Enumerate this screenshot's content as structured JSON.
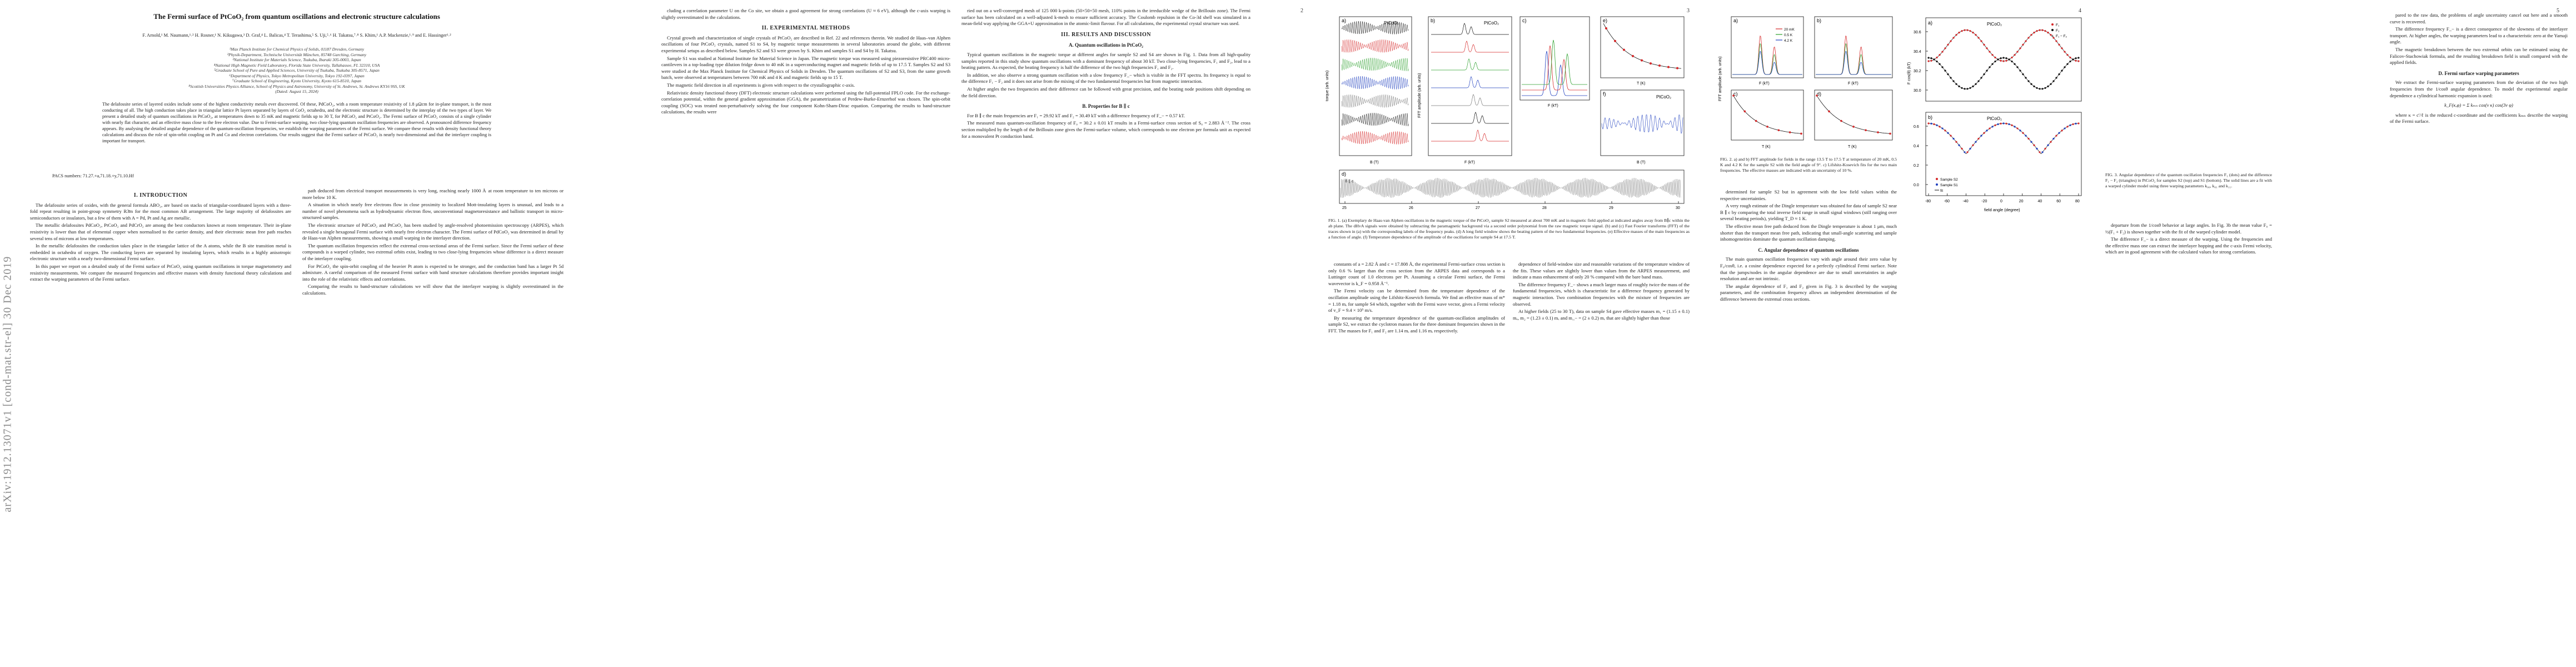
{
  "arxiv_stamp": "arXiv:1912.13071v1  [cond-mat.str-el]  30 Dec 2019",
  "page_numbers": [
    "2",
    "3",
    "4",
    "5"
  ],
  "page1": {
    "title": "The Fermi surface of PtCoO₂ from quantum oscillations and electronic structure calculations",
    "authors": "F. Arnold,¹ M. Naumann,¹˒² H. Rosner,¹ N. Kikugawa,³ D. Graf,⁴ L. Balicas,⁴ T. Terashima,⁵ S. Uji,⁵˒⁶ H. Takatsu,⁷˒⁸ S. Khim,¹ A.P. Mackenzie,¹˒⁹ and E. Hassinger¹˒²",
    "affiliations": [
      "¹Max Planck Institute for Chemical Physics of Solids, 01187 Dresden, Germany",
      "²Physik-Department, Technische Universität München, 85748 Garching, Germany",
      "³National Institute for Materials Science, Tsukuba, Ibaraki 305-0003, Japan",
      "⁴National High Magnetic Field Laboratory, Florida State University, Tallahassee, FL 32310, USA",
      "⁵Graduate School of Pure and Applied Sciences, University of Tsukuba, Tsukuba 305-8571, Japan",
      "⁶Department of Physics, Tokyo Metropolitan University, Tokyo 192-0397, Japan",
      "⁷Graduate School of Engineering, Kyoto University, Kyoto 615-8510, Japan",
      "⁸Scottish Universities Physics Alliance, School of Physics and Astronomy, University of St. Andrews, St. Andrews KY16 9SS, UK",
      "(Dated: August 15, 2024)"
    ],
    "abstract": "The delafossite series of layered oxides include some of the highest conductivity metals ever discovered. Of these, PdCoO₂, with a room temperature resistivity of 1.8 μΩcm for in-plane transport, is the most conducting of all. The high conduction takes place in triangular lattice Pt layers separated by layers of CoO₂ octahedra, and the electronic structure is determined by the interplay of the two types of layer. We present a detailed study of quantum oscillations in PtCoO₂, at temperatures down to 35 mK and magnetic fields up to 30 T, for PdCoO₂ and PtCoO₂. The Fermi surface of PtCoO₂ consists of a single cylinder with nearly flat character, and an effective mass close to the free electron value. Due to Fermi-surface warping, two close-lying quantum oscillation frequencies are observed. A pronounced difference frequency appears. By analysing the detailed angular dependence of the quantum-oscillation frequencies, we establish the warping parameters of the Fermi surface. We compare these results with density functional theory calculations and discuss the role of spin-orbit coupling on Pt and Co and electron correlations. Our results suggest that the Fermi surface of PtCoO₂ is nearly two-dimensional and that the interlayer coupling is important for transport.",
    "pacs": "PACS numbers: 71.27.+a,71.18.+y,71.10.Hf",
    "section1_heading": "I.   INTRODUCTION",
    "section1_paragraphs": [
      "The delafossite series of oxides, with the general formula ABO₂, are based on stacks of triangular-coordinated layers with a three-fold repeat resulting in point-group symmetry R3̄m for the most common AB arrangement. The large majority of delafossites are semiconductors or insulators, but a few of them with A = Pd, Pt and Ag are metallic.",
      "The metallic delafossites PdCoO₂, PtCoO₂ and PdCrO₂ are among the best conductors known at room temperature. Their in-plane resistivity is lower than that of elemental copper when normalised to the carrier density, and their electronic mean free path reaches several tens of microns at low temperatures.",
      "In the metallic delafossites the conduction takes place in the triangular lattice of the A atoms, while the B site transition metal is embedded in octahedra of oxygen. The conducting layers are separated by insulating layers, which results in a highly anisotropic electronic structure with a nearly two-dimensional Fermi surface.",
      "In this paper we report on a detailed study of the Fermi surface of PtCoO₂ using quantum oscillations in torque magnetometry and resistivity measurements. We compare the measured frequencies and effective masses with density functional theory calculations and extract the warping parameters of the Fermi surface."
    ],
    "col2_paragraphs": [
      "path deduced from electrical transport measurements is very long, reaching nearly 1000 Å at room temperature to ten microns or more below 10 K.",
      "A situation in which nearly free electrons flow in close proximity to localized Mott-insulating layers is unusual, and leads to a number of novel phenomena such as hydrodynamic electron flow, unconventional magnetoresistance and ballistic transport in micro-structured samples.",
      "The electronic structure of PdCoO₂ and PtCoO₂ has been studied by angle-resolved photoemission spectroscopy (ARPES), which revealed a single hexagonal Fermi surface with nearly free electron character. The Fermi surface of PdCoO₂ was determined in detail by de Haas-van Alphen measurements, showing a small warping in the interlayer direction.",
      "The quantum oscillation frequencies reflect the extremal cross-sectional areas of the Fermi surface. Since the Fermi surface of these compounds is a warped cylinder, two extremal orbits exist, leading to two close-lying frequencies whose difference is a direct measure of the interlayer coupling.",
      "For PtCoO₂ the spin-orbit coupling of the heavier Pt atom is expected to be stronger, and the conduction band has a larger Pt 5d admixture. A careful comparison of the measured Fermi surface with band structure calculations therefore provides important insight into the role of the relativistic effects and correlations.",
      "Comparing the results to band-structure calculations we will show that the interlayer warping is slightly overestimated in the calculations."
    ]
  },
  "page2": {
    "col1_paragraphs": [
      "cluding a correlation parameter U on the Co site, we obtain a good agreement for strong correlations (U ≈ 6 eV), although the c-axis warping is slightly overestimated in the calculations."
    ],
    "section2_heading": "II.   EXPERIMENTAL METHODS",
    "section2_paragraphs": [
      "Crystal growth and characterization of single crystals of PtCoO₂ are described in Ref. 22 and references therein. We studied de Haas–van Alphen oscillations of four PtCoO₂ crystals, named S1 to S4, by magnetic torque measurements in several laboratories around the globe, with different experimental setups as described below. Samples S2 and S3 were grown by S. Khim and samples S1 and S4 by H. Takatsu.",
      "Sample S1 was studied at National Institute for Material Science in Japan. The magnetic torque was measured using piezoresistive PRC400 micro-cantilevers in a top-loading type dilution fridge down to 40 mK in a superconducting magnet and magnetic fields of up to 17.5 T. Samples S2 and S3 were studied at the Max Planck Institute for Chemical Physics of Solids in Dresden. The quantum oscillations of S2 and S3, from the same growth batch, were observed at temperatures between 700 mK and 4 K and magnetic fields up to 15 T.",
      "The magnetic field direction in all experiments is given with respect to the crystallographic c-axis.",
      "Relativistic density functional theory (DFT) electronic structure calculations were performed using the full-potential FPLO code. For the exchange-correlation potential, within the general gradient approximation (GGA), the parametrization of Perdew-Burke-Ernzerhof was chosen. The spin-orbit coupling (SOC) was treated non-perturbatively solving the four component Kohn-Sham-Dirac equation. Comparing the results to band-structure calculations, the results were"
    ],
    "col2_paragraphs": [
      "ried out on a well-converged mesh of 125 000 k-points (50×50×50 mesh, 110% points in the irreducible wedge of the Brillouin zone). The Fermi surface has been calculated on a well-adjusted k-mesh to ensure sufficient accuracy. The Coulomb repulsion in the Co-3d shell was simulated in a mean-field way applying the GGA+U approximation in the atomic-limit flavour. For all calculations, the experimental crystal structure was used."
    ],
    "section3_heading": "III.   RESULTS AND DISCUSSION",
    "subsectionA_heading": "A.   Quantum oscillations in PtCoO₂",
    "subsectionA_paragraphs": [
      "Typical quantum oscillations in the magnetic torque at different angles for sample S2 and S4 are shown in Fig. 1. Data from all high-quality samples reported in this study show quantum oscillations with a dominant frequency of about 30 kT. Two close-lying frequencies, F₁ and F₂, lead to a beating pattern. As expected, the beating frequency is half the difference of the two high frequencies F₁ and F₂.",
      "In addition, we also observe a strong quantum oscillation with a slow frequency F_− which is visible in the FFT spectra. Its frequency is equal to the difference F₁ − F₂ and it does not arise from the mixing of the two fundamental frequencies but from magnetic interaction.",
      "At higher angles the two frequencies and their difference can be followed with great precision, and the beating node positions shift depending on the field direction."
    ],
    "subsectionB_heading": "B.   Properties for B ∥ c",
    "subsectionB_paragraphs": [
      "For B ∥ c the main frequencies are F₁ = 29.92 kT and F₂ = 30.49 kT with a difference frequency of F_− = 0.57 kT.",
      "The measured mass quantum-oscillation frequency of F₀ = 30.2 ± 0.01 kT results in a Fermi-surface cross section of S₀ = 2.883 Å⁻². The cross section multiplied by the length of the Brillouin zone gives the Fermi-surface volume, which corresponds to one electron per formula unit as expected for a monovalent Pt conduction band."
    ]
  },
  "page3": {
    "figure1_caption": "FIG. 1. (a) Exemplary de Haas-van Alphen oscillations in the magnetic torque of the PtCoO₂ sample S2 measured at about 700 mK and in magnetic field applied at indicated angles away from B∥c within the ab plane. The dHvA signals were obtained by subtracting the paramagnetic background via a second order polynomial from the raw magnetic torque signal. (b) and (c) Fast Fourier transforms (FFT) of the traces shown in (a) with the corresponding labels of the frequency peaks. (d) A long field window shows the beating pattern of the two fundamental frequencies. (e) Effective masses of the main frequencies as a function of angle. (f) Temperature dependence of the amplitude of the oscillations for sample S4 at 17.5 T.",
    "col1_paragraphs": [
      "constants of a = 2.82 Å and c = 17.808 Å, the experimental Fermi-surface cross section is only 0.6 % larger than the cross section from the ARPES data and corresponds to a Luttinger count of 1.0 electrons per Pt. Assuming a circular Fermi surface, the Fermi wavevector is k_F = 0.958 Å⁻¹.",
      "The Fermi velocity can be determined from the temperature dependence of the oscillation amplitude using the Lifshitz-Kosevich formula. We find an effective mass of m* = 1.18 mₑ for sample S4 which, together with the Fermi wave vector, gives a Fermi velocity of v_F = 9.4 × 10⁵ m/s.",
      "By measuring the temperature dependence of the quantum-oscillation amplitudes of sample S2, we extract the cyclotron masses for the three dominant frequencies shown in the FFT. The masses for F₁ and F₂ are 1.14 mₑ and 1.16 mₑ respectively."
    ],
    "col2_paragraphs": [
      "dependence of field-window size and reasonable variations of the temperature window of the fits. These values are slightly lower than values from the ARPES measurement, and indicate a mass enhancement of only 20 % compared with the bare band mass.",
      "The difference frequency F_− shows a much larger mass of roughly twice the mass of the fundamental frequencies, which is characteristic for a difference frequency generated by magnetic interaction. Two combination frequencies with the mixture of frequencies are observed.",
      "At higher fields (25 to 30 T), data on sample S4 gave effective masses m₁ = (1.15 ± 0.1) mₑ, m₂ = (1.23 ± 0.1) mₑ and m_− = (2 ± 0.2) mₑ that are slightly higher than those"
    ]
  },
  "page4": {
    "figure2_caption": "FIG. 2. a) and b) FFT amplitude for fields in the range 13.5 T to 17.5 T at temperature of 20 mK, 0.5 K and 4.2 K for the sample S2 with the field angle of 9°. c) Lifshitz-Kosevich fits for the two main frequencies. The effective masses are indicated with an uncertainty of 10 %.",
    "col1_paragraphs": [
      "determined for sample S2 but in agreement with the low field values within the respective uncertainties.",
      "A very rough estimate of the Dingle temperature was obtained for data of sample S2 near B ∥ c by comparing the total inverse field range in small signal windows (still ranging over several beating periods), yielding T_D ≈ 1 K.",
      "The effective mean free path deduced from the Dingle temperature is about 1 μm, much shorter than the transport mean free path, indicating that small-angle scattering and sample inhomogeneities dominate the quantum oscillation damping."
    ],
    "subsectionC_heading": "C.   Angular dependence of quantum oscillations",
    "subsectionC_paragraphs": [
      "The main quantum oscillation frequencies vary with angle around their zero value by F₀/cosθ, i.e. a cosine dependence expected for a perfectly cylindrical Fermi surface. Note that the jumps/nodes in the angular dependence are due to small uncertainties in angle resolution and are not intrinsic.",
      "The angular dependence of F₁ and F₂ given in Fig. 3 is described by the warping parameters, and the combination frequency allows an independent determination of the difference between the extremal cross sections."
    ]
  },
  "page5": {
    "figure3_caption": "FIG. 3. Angular dependence of the quantum oscillation frequencies F₁ (dots) and the difference F₁ − F₂ (triangles) in PtCoO₂ for samples S2 (top) and S1 (bottom). The solid lines are a fit with a warped cylinder model using three warping parameters k₀₀, k₀₁ and k₁₁.",
    "col1_paragraphs": [
      "departure from the 1/cosθ behavior at large angles. In Fig. 3b the mean value F₀ = ½(F₁ + F₂) is shown together with the fit of the warped cylinder model.",
      "The difference F_− is a direct measure of the warping. Using the frequencies and the effective mass one can extract the interlayer hopping and the c-axis Fermi velocity, which are in good agreement with the calculated values for strong correlations."
    ],
    "col2_paragraphs": [
      "pared to the raw data, the problems of angle uncertainty cancel out here and a smooth curve is recovered.",
      "The difference frequency F_− is a direct consequence of the slowness of the interlayer transport. At higher angles, the warping parameters lead to a characteristic zero at the Yamaji angle.",
      "The magnetic breakdown between the two extremal orbits can be estimated using the Falicov-Stachowiak formula, and the resulting breakdown field is small compared with the applied fields."
    ],
    "subsectionD_heading": "D.   Fermi surface warping parameters",
    "subsectionD_paragraphs": [
      "We extract the Fermi-surface warping parameters from the deviation of the two high frequencies from the 1/cosθ angular dependence. To model the experimental angular dependence a cylindrical harmonic expansion is used:",
      "where κ = c'/ℓ is the reduced c-coordinate and the coefficients kₘₙ describe the warping of the Fermi surface."
    ],
    "equation": "k_F(κ,φ) = Σ kₘₙ cos(ν κ) cos(3ν φ)"
  },
  "fig_labels": {
    "fig1": {
      "panel_a": "a)",
      "panel_b": "b)",
      "panel_c": "c)",
      "panel_d": "d)",
      "panel_e": "e)",
      "panel_f": "f)",
      "sample_a": "PtCoO₂",
      "sample_b": "PtCoO₂",
      "sample_f": "PtCoO₂",
      "ylabel_a": "torque (arb. units)",
      "xlabel_a": "B (T)",
      "ylabel_b": "FFT amplitude (arb. units)",
      "xlabel_b": "F (kT)",
      "xlabel_c": "F (kT)",
      "xlabel_e": "T (K)",
      "xlabel_f": "B (T)",
      "bsym": "B ∥ c",
      "x_ticks_d": [
        "25",
        "26",
        "27",
        "28",
        "29",
        "30"
      ]
    },
    "fig2": {
      "panel_a": "a)",
      "panel_b": "b)",
      "panel_c": "c)",
      "panel_d": "d)",
      "ylabel": "FFT amplitude (arb. units)",
      "xlabel_a": "F (kT)",
      "xlabel_b": "F (kT)",
      "xlabel_c": "T (K)",
      "xlabel_d": "T (K)",
      "legend": [
        "20 mK",
        "0.5 K",
        "4.2 K"
      ]
    },
    "fig3": {
      "panel_a": "a)",
      "panel_b": "b)",
      "ylabel": "F cos(θ) (kT)",
      "xlabel": "field angle (degree)",
      "sample_top": "PtCoO₂",
      "sample_bottom": "PtCoO₂",
      "legend_top": [
        "F₁",
        "F₂",
        "F₁ − F₂"
      ],
      "legend_bottom": [
        "Sample S2",
        "Sample S1",
        "fit"
      ],
      "x_ticks": [
        "-80",
        "-60",
        "-40",
        "-20",
        "0",
        "20",
        "40",
        "60",
        "80"
      ],
      "y_ticks_top": [
        "30.6",
        "30.4",
        "30.2",
        "30.0"
      ],
      "y_ticks_bottom": [
        "0.6",
        "0.4",
        "0.2",
        "0.0"
      ]
    }
  },
  "colors": {
    "red": "#d62728",
    "blue": "#1f3fbf",
    "green": "#2ca02c",
    "gray": "#777777",
    "black": "#111111"
  }
}
